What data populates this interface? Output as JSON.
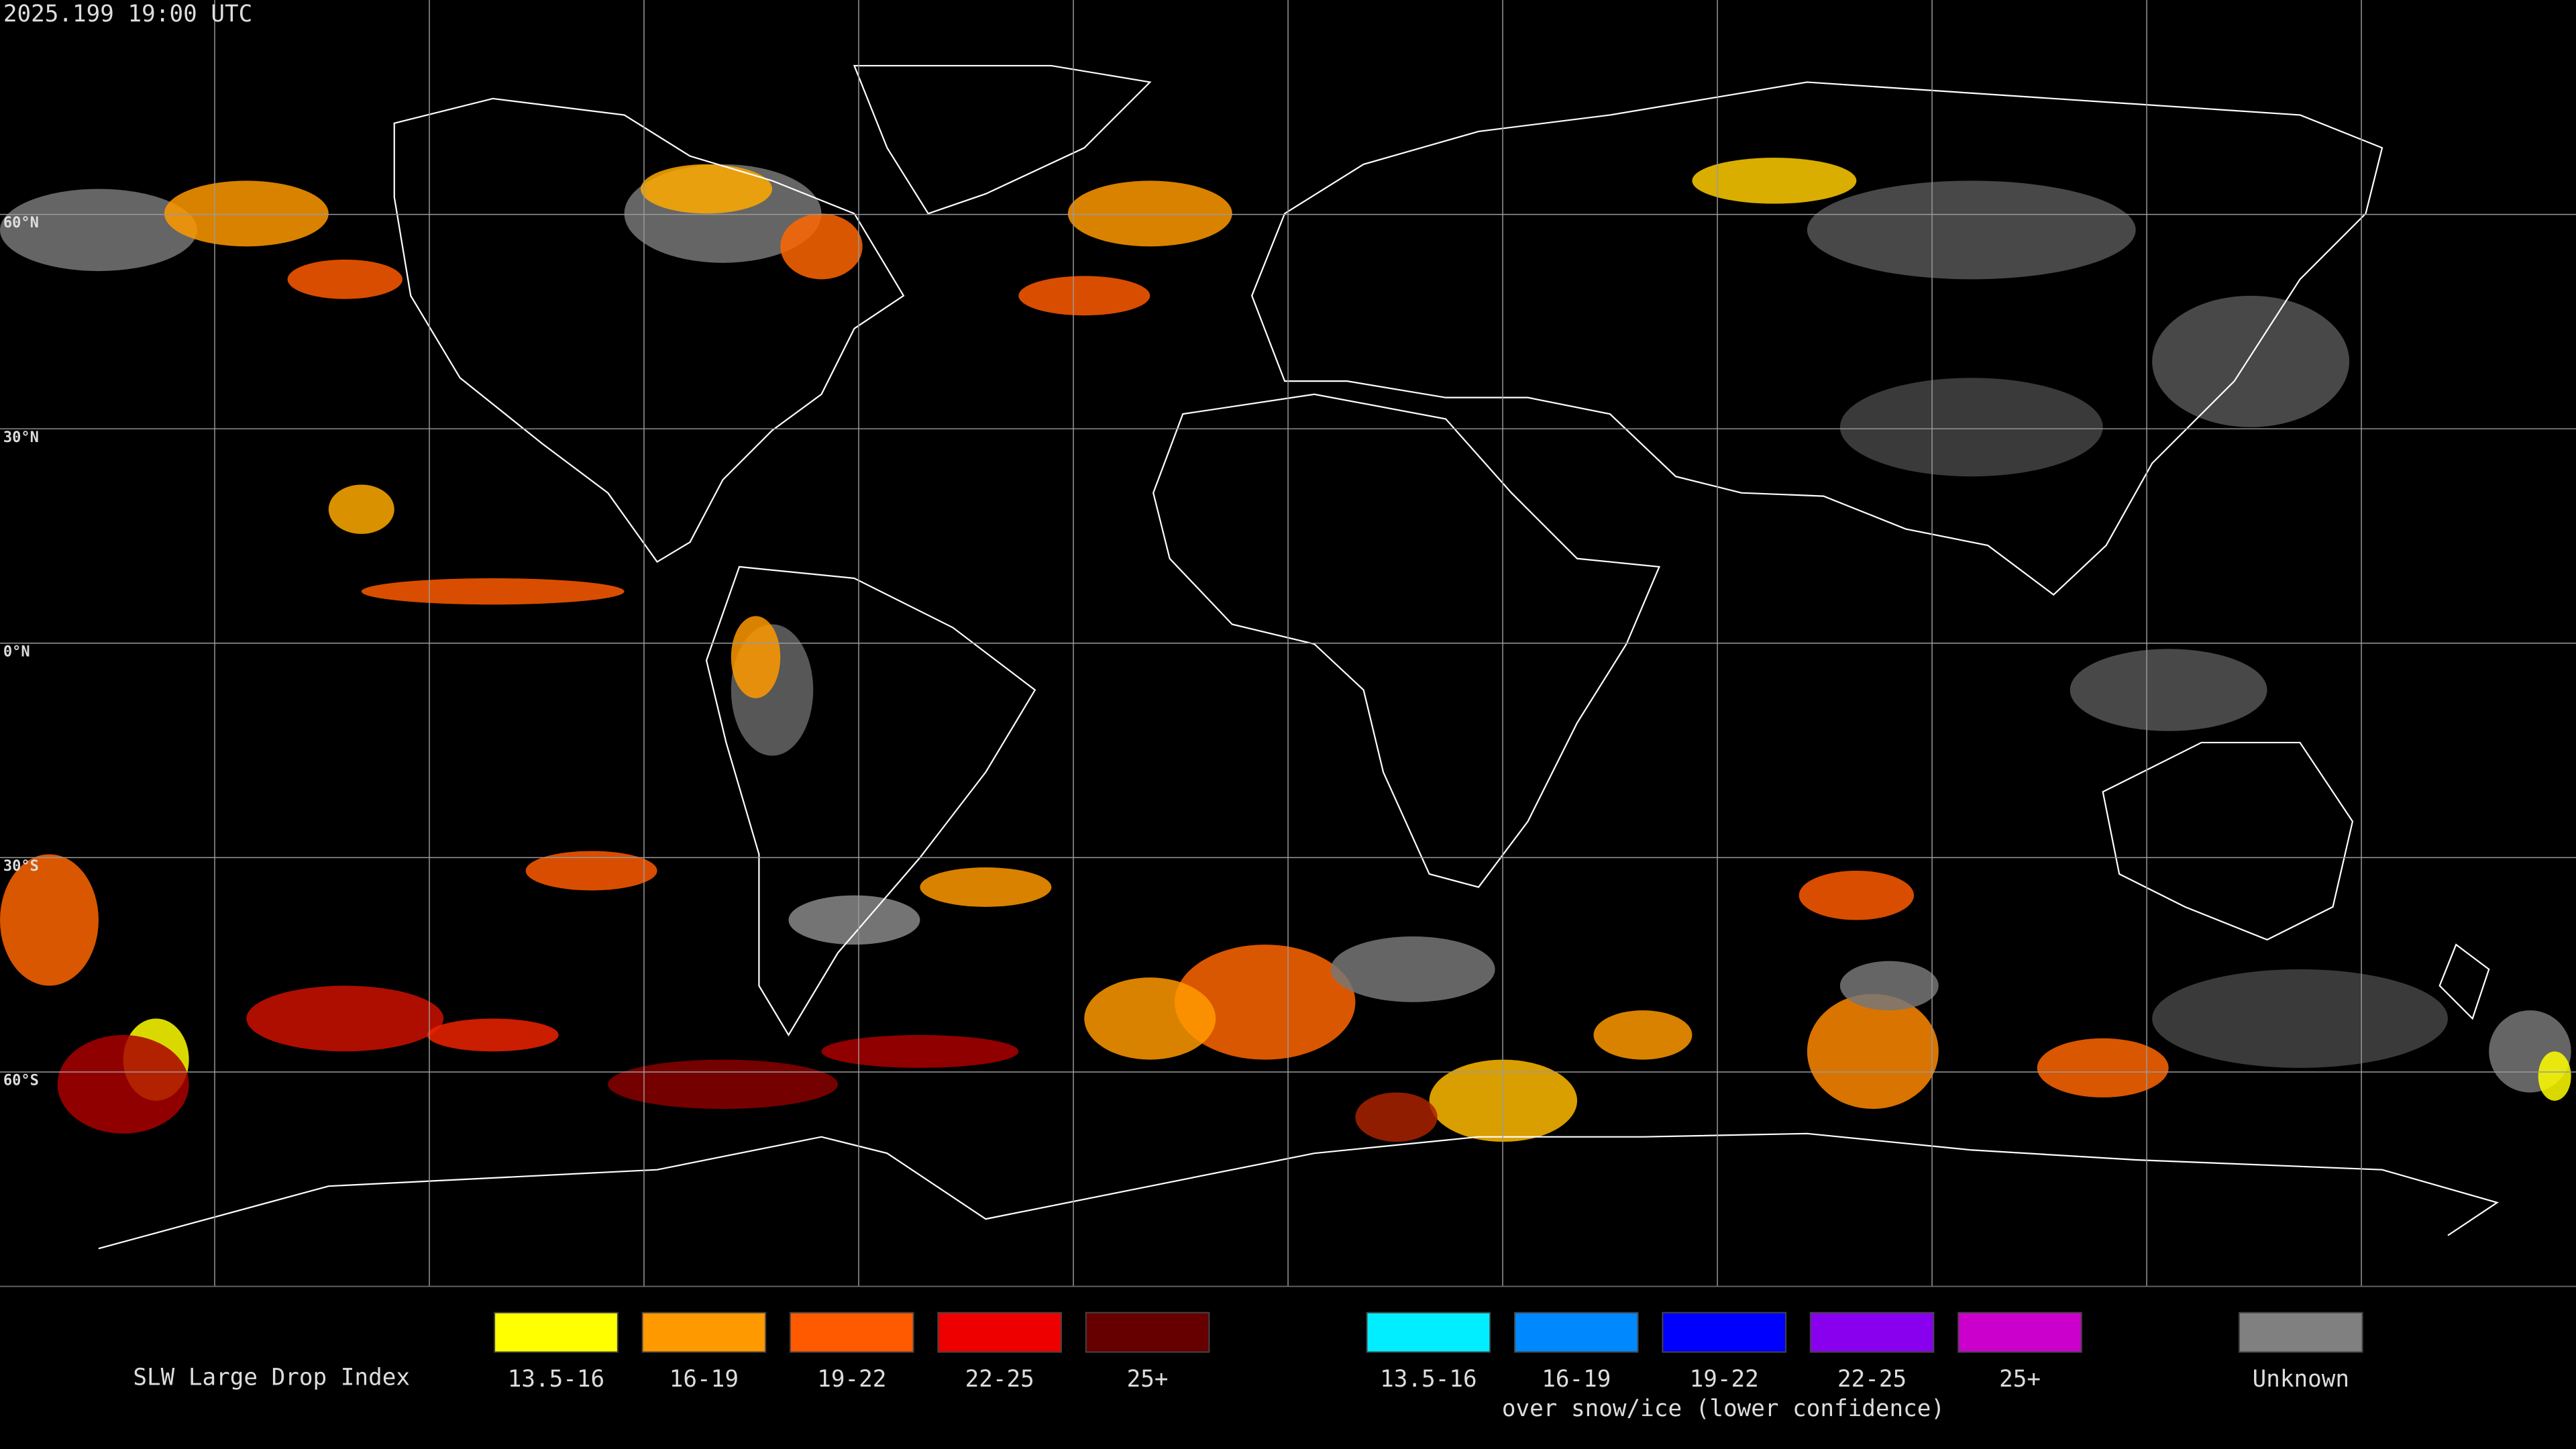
{
  "header": {
    "timestamp": "2025.199 19:00 UTC"
  },
  "latitude_labels": [
    "60°N",
    "30°N",
    "0°N",
    "30°S",
    "60°S"
  ],
  "legend": {
    "title": "SLW Large Drop Index",
    "items": [
      {
        "label": "13.5-16",
        "color": "#ffff00"
      },
      {
        "label": "16-19",
        "color": "#ff9900"
      },
      {
        "label": "19-22",
        "color": "#ff5a00"
      },
      {
        "label": "22-25",
        "color": "#ee0000"
      },
      {
        "label": "25+",
        "color": "#660000"
      }
    ],
    "snow_items": [
      {
        "label": "13.5-16",
        "color": "#00eeff"
      },
      {
        "label": "16-19",
        "color": "#0088ff"
      },
      {
        "label": "19-22",
        "color": "#0000ff"
      },
      {
        "label": "22-25",
        "color": "#8800ee"
      },
      {
        "label": "25+",
        "color": "#cc00cc"
      }
    ],
    "snow_caption": "over snow/ice (lower confidence)",
    "unknown": {
      "label": "Unknown",
      "color": "#808080"
    }
  }
}
